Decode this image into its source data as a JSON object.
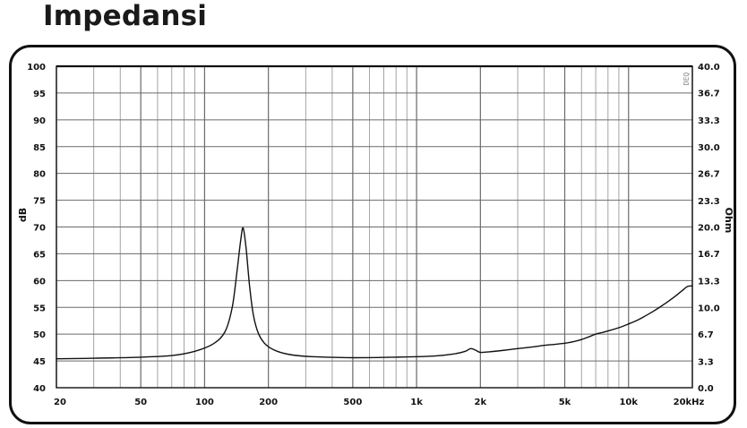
{
  "page_title": "Impedansi",
  "chart_data": {
    "type": "line",
    "title": "",
    "xlabel": "",
    "ylabel": "dB",
    "ylabel_right": "Ohm",
    "x_scale": "log",
    "xlim": [
      20,
      20000
    ],
    "ylim": [
      40,
      100
    ],
    "ylim_right": [
      0,
      40
    ],
    "grid": true,
    "watermark": "DEQ",
    "x_ticks": [
      {
        "value": 20,
        "label": "20"
      },
      {
        "value": 50,
        "label": "50"
      },
      {
        "value": 100,
        "label": "100"
      },
      {
        "value": 200,
        "label": "200"
      },
      {
        "value": 500,
        "label": "500"
      },
      {
        "value": 1000,
        "label": "1k"
      },
      {
        "value": 2000,
        "label": "2k"
      },
      {
        "value": 5000,
        "label": "5k"
      },
      {
        "value": 10000,
        "label": "10k"
      },
      {
        "value": 20000,
        "label": "20kHz"
      }
    ],
    "y_ticks": [
      {
        "value": 100,
        "label": "100"
      },
      {
        "value": 95,
        "label": "95"
      },
      {
        "value": 90,
        "label": "90"
      },
      {
        "value": 85,
        "label": "85"
      },
      {
        "value": 80,
        "label": "80"
      },
      {
        "value": 75,
        "label": "75"
      },
      {
        "value": 70,
        "label": "70"
      },
      {
        "value": 65,
        "label": "65"
      },
      {
        "value": 60,
        "label": "60"
      },
      {
        "value": 55,
        "label": "55"
      },
      {
        "value": 50,
        "label": "50"
      },
      {
        "value": 45,
        "label": "45"
      },
      {
        "value": 40,
        "label": "40"
      }
    ],
    "y_ticks_right": [
      {
        "value": 40.0,
        "label": "40.0"
      },
      {
        "value": 36.7,
        "label": "36.7"
      },
      {
        "value": 33.3,
        "label": "33.3"
      },
      {
        "value": 30.0,
        "label": "30.0"
      },
      {
        "value": 26.7,
        "label": "26.7"
      },
      {
        "value": 23.3,
        "label": "23.3"
      },
      {
        "value": 20.0,
        "label": "20.0"
      },
      {
        "value": 16.7,
        "label": "16.7"
      },
      {
        "value": 13.3,
        "label": "13.3"
      },
      {
        "value": 10.0,
        "label": "10.0"
      },
      {
        "value": 6.7,
        "label": "6.7"
      },
      {
        "value": 3.3,
        "label": "3.3"
      },
      {
        "value": 0.0,
        "label": "0.0"
      }
    ],
    "series": [
      {
        "color": "#111111",
        "x": [
          20,
          30,
          50,
          70,
          90,
          110,
          125,
          135,
          142,
          148,
          152,
          157,
          163,
          170,
          180,
          195,
          220,
          260,
          320,
          500,
          800,
          1200,
          1500,
          1700,
          1800,
          1900,
          2000,
          2200,
          2600,
          3000,
          3500,
          4000,
          4500,
          5000,
          5500,
          6000,
          6500,
          7000,
          7500,
          8000,
          9000,
          10000,
          11000,
          12000,
          13000,
          14000,
          15000,
          16000,
          17000,
          18000,
          19000,
          20000
        ],
        "y": [
          45.4,
          45.5,
          45.7,
          46.0,
          46.8,
          48.2,
          50.5,
          55.0,
          61.5,
          67.5,
          69.8,
          66.0,
          59.0,
          53.5,
          50.0,
          48.0,
          46.8,
          46.1,
          45.8,
          45.6,
          45.7,
          45.9,
          46.3,
          46.8,
          47.3,
          47.0,
          46.6,
          46.7,
          47.0,
          47.3,
          47.6,
          47.9,
          48.1,
          48.3,
          48.6,
          49.0,
          49.5,
          50.0,
          50.3,
          50.6,
          51.2,
          51.9,
          52.6,
          53.4,
          54.2,
          55.0,
          55.8,
          56.6,
          57.4,
          58.2,
          58.9,
          59.0
        ]
      }
    ]
  }
}
